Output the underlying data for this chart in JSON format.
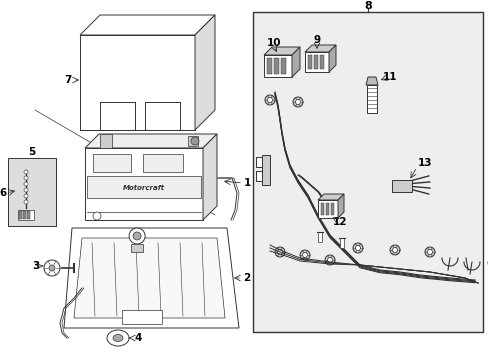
{
  "bg_color": "#ffffff",
  "line_color": "#333333",
  "fig_width": 4.89,
  "fig_height": 3.6,
  "dpi": 100,
  "panel_bg": "#eeeeee",
  "box5_bg": "#dddddd"
}
